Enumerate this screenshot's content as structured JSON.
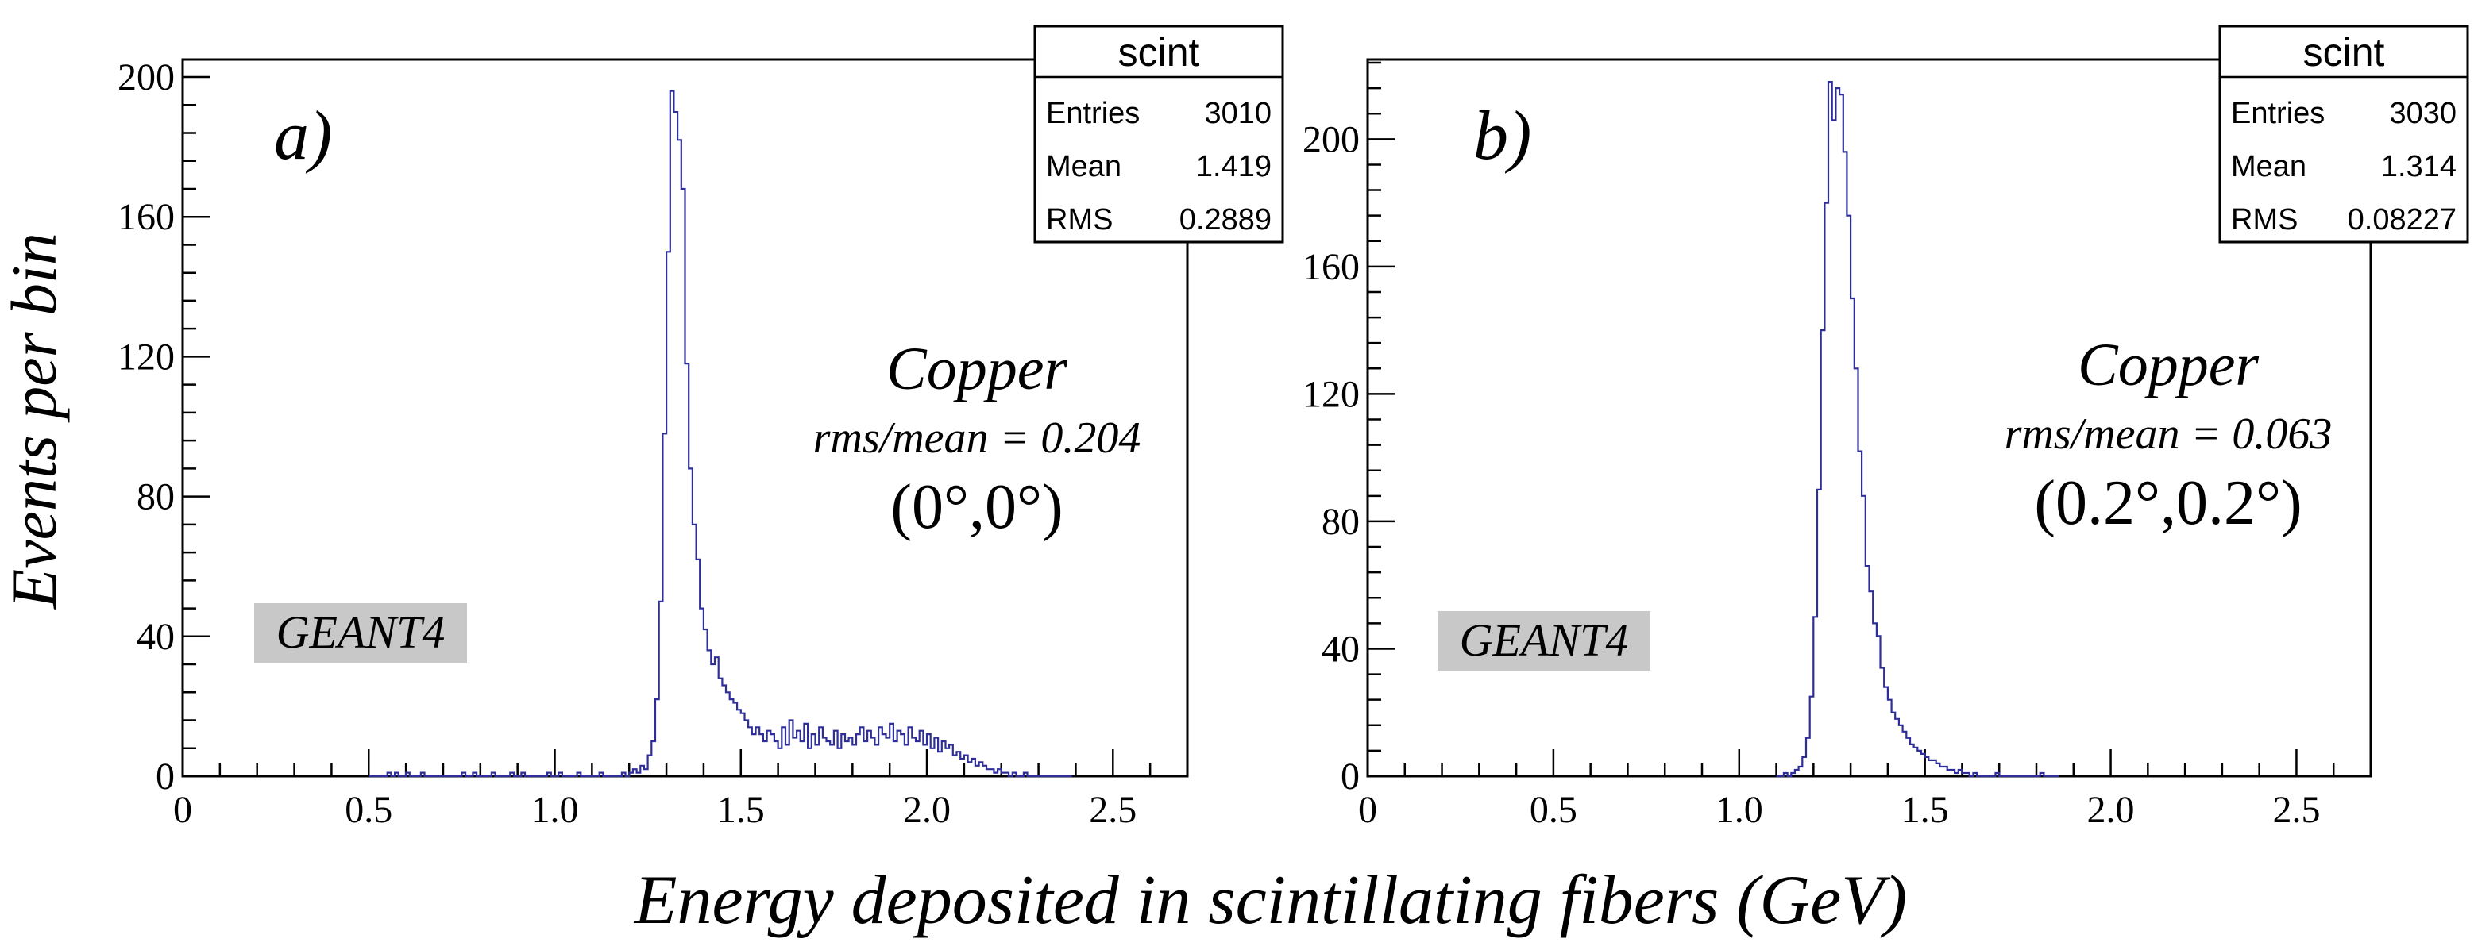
{
  "figure": {
    "ylabel": "Events per bin",
    "xlabel": "Energy deposited in scintillating fibers (GeV)"
  },
  "colors": {
    "histogram": "#2e2e9a",
    "axis": "#000000",
    "geant_box": "#c8c8c8"
  },
  "chart_data": [
    {
      "type": "histogram",
      "panel_label": "a)",
      "xlim": [
        0,
        2.7
      ],
      "ylim": [
        0,
        205
      ],
      "xticks": [
        "0",
        "0.5",
        "1.0",
        "1.5",
        "2.0",
        "2.5"
      ],
      "yticks": [
        "0",
        "40",
        "80",
        "120",
        "160",
        "200"
      ],
      "stats": {
        "title": "scint",
        "rows": [
          {
            "label": "Entries",
            "value": "3010"
          },
          {
            "label": "Mean",
            "value": "1.419"
          },
          {
            "label": "RMS",
            "value": "0.2889"
          }
        ]
      },
      "annotation": {
        "material": "Copper",
        "ratio": "rms/mean = 0.204",
        "angle_text": "(0°,0°)"
      },
      "generator": "GEANT4",
      "bins": {
        "start": 0.5,
        "width": 0.01,
        "counts": [
          0,
          0,
          0,
          0,
          0,
          1,
          0,
          1,
          0,
          0,
          1,
          0,
          0,
          0,
          1,
          0,
          0,
          0,
          0,
          0,
          0,
          0,
          0,
          0,
          0,
          1,
          0,
          0,
          1,
          0,
          0,
          0,
          0,
          1,
          0,
          0,
          0,
          0,
          1,
          0,
          0,
          1,
          0,
          0,
          0,
          0,
          0,
          0,
          1,
          0,
          0,
          1,
          0,
          0,
          0,
          0,
          1,
          0,
          0,
          0,
          0,
          0,
          1,
          0,
          0,
          0,
          0,
          0,
          1,
          0,
          1,
          2,
          1,
          3,
          2,
          6,
          10,
          22,
          50,
          98,
          150,
          196,
          190,
          182,
          168,
          118,
          88,
          72,
          62,
          48,
          42,
          36,
          32,
          34,
          28,
          26,
          24,
          22,
          21,
          19,
          18,
          16,
          14,
          12,
          14,
          12,
          10,
          13,
          12,
          10,
          8,
          14,
          9,
          16,
          11,
          13,
          10,
          15,
          8,
          12,
          9,
          14,
          11,
          10,
          9,
          13,
          8,
          12,
          10,
          11,
          9,
          12,
          14,
          10,
          13,
          11,
          9,
          14,
          12,
          11,
          15,
          10,
          13,
          12,
          9,
          14,
          11,
          10,
          13,
          9,
          12,
          8,
          11,
          7,
          10,
          8,
          9,
          6,
          7,
          5,
          6,
          4,
          5,
          3,
          4,
          3,
          2,
          2,
          1,
          2,
          1,
          1,
          0,
          1,
          0,
          0,
          1,
          0,
          0,
          0,
          0,
          0,
          0,
          0,
          0,
          0,
          0,
          0,
          0
        ]
      }
    },
    {
      "type": "histogram",
      "panel_label": "b)",
      "xlim": [
        0,
        2.7
      ],
      "ylim": [
        0,
        225
      ],
      "xticks": [
        "0",
        "0.5",
        "1.0",
        "1.5",
        "2.0",
        "2.5"
      ],
      "yticks": [
        "0",
        "40",
        "80",
        "120",
        "160",
        "200"
      ],
      "stats": {
        "title": "scint",
        "rows": [
          {
            "label": "Entries",
            "value": "3030"
          },
          {
            "label": "Mean",
            "value": "1.314"
          },
          {
            "label": "RMS",
            "value": "0.08227"
          }
        ]
      },
      "annotation": {
        "material": "Copper",
        "ratio": "rms/mean = 0.063",
        "angle_text": "(0.2°,0.2°)"
      },
      "generator": "GEANT4",
      "bins": {
        "start": 1.1,
        "width": 0.01,
        "counts": [
          0,
          0,
          1,
          0,
          1,
          2,
          3,
          6,
          12,
          25,
          50,
          90,
          140,
          180,
          218,
          206,
          216,
          214,
          196,
          176,
          150,
          128,
          102,
          88,
          66,
          58,
          48,
          44,
          34,
          28,
          24,
          20,
          18,
          16,
          14,
          12,
          10,
          9,
          8,
          7,
          6,
          5,
          5,
          4,
          3,
          3,
          2,
          2,
          1,
          2,
          1,
          1,
          0,
          1,
          0,
          0,
          0,
          0,
          0,
          1,
          0,
          0,
          0,
          0,
          0,
          0,
          0,
          0,
          0,
          0,
          0,
          1,
          0,
          0,
          0,
          0
        ]
      }
    }
  ]
}
